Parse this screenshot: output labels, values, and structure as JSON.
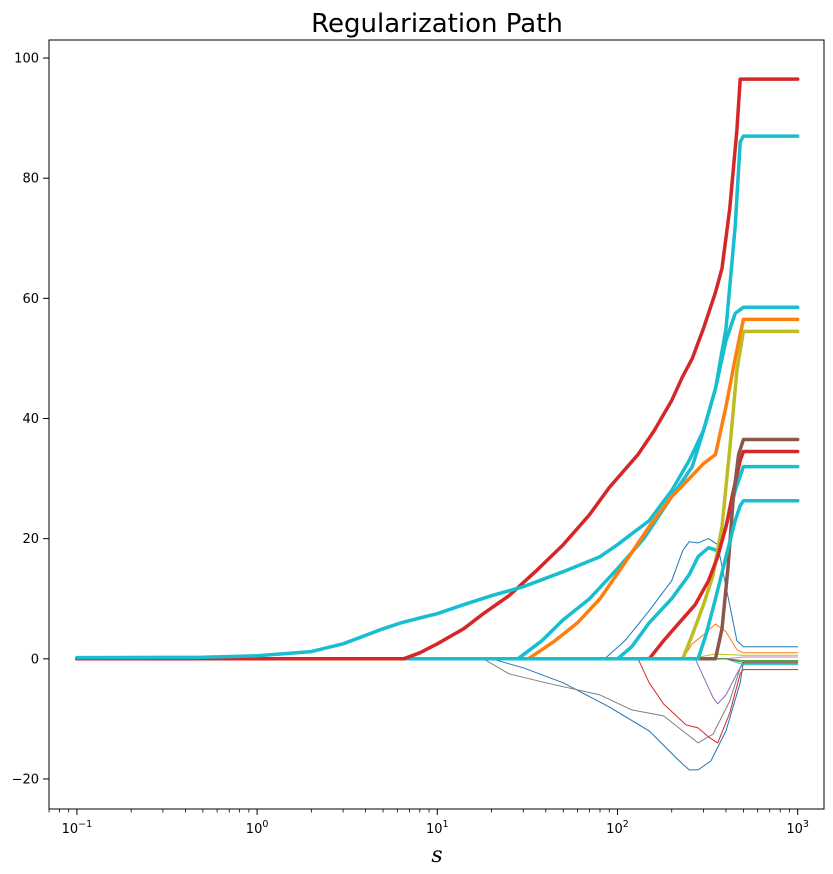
{
  "chart_data": {
    "type": "line",
    "title": "Regularization Path",
    "xlabel": "s",
    "ylabel": "",
    "xscale": "log",
    "xlim": [
      0.07,
      1400
    ],
    "ylim": [
      -25,
      103
    ],
    "grid": false,
    "legend": "none",
    "x_ticks": [
      {
        "value": 0.1,
        "mantissa": "10",
        "exp": "−1"
      },
      {
        "value": 1,
        "mantissa": "10",
        "exp": "0"
      },
      {
        "value": 10,
        "mantissa": "10",
        "exp": "1"
      },
      {
        "value": 100,
        "mantissa": "10",
        "exp": "2"
      },
      {
        "value": 1000,
        "mantissa": "10",
        "exp": "3"
      }
    ],
    "y_ticks": [
      {
        "value": -20,
        "label": "−20"
      },
      {
        "value": 0,
        "label": "0"
      },
      {
        "value": 20,
        "label": "20"
      },
      {
        "value": 40,
        "label": "40"
      },
      {
        "value": 60,
        "label": "60"
      },
      {
        "value": 80,
        "label": "80"
      },
      {
        "value": 100,
        "label": "100"
      }
    ],
    "series": [
      {
        "color": "#1f77b4",
        "width": 1,
        "points": [
          [
            0.1,
            0
          ],
          [
            20,
            0
          ],
          [
            30,
            -1.5
          ],
          [
            50,
            -4
          ],
          [
            90,
            -8
          ],
          [
            150,
            -12
          ],
          [
            220,
            -17
          ],
          [
            250,
            -18.5
          ],
          [
            280,
            -18.5
          ],
          [
            330,
            -17
          ],
          [
            400,
            -12
          ],
          [
            480,
            -4
          ],
          [
            500,
            -0.5
          ],
          [
            1000,
            -0.5
          ]
        ]
      },
      {
        "color": "#7f7f7f",
        "width": 1,
        "points": [
          [
            0.1,
            0
          ],
          [
            18,
            0
          ],
          [
            25,
            -2.5
          ],
          [
            40,
            -4
          ],
          [
            80,
            -6
          ],
          [
            120,
            -8.5
          ],
          [
            180,
            -9.5
          ],
          [
            230,
            -12
          ],
          [
            280,
            -14
          ],
          [
            340,
            -12.5
          ],
          [
            420,
            -7
          ],
          [
            480,
            -1.5
          ],
          [
            500,
            -0.8
          ],
          [
            1000,
            -0.8
          ]
        ]
      },
      {
        "color": "#d62728",
        "width": 1,
        "points": [
          [
            0.1,
            0
          ],
          [
            130,
            0
          ],
          [
            150,
            -4
          ],
          [
            180,
            -7.5
          ],
          [
            240,
            -11
          ],
          [
            280,
            -11.5
          ],
          [
            320,
            -13
          ],
          [
            360,
            -14
          ],
          [
            420,
            -9
          ],
          [
            480,
            -2.5
          ],
          [
            500,
            -1.8
          ],
          [
            1000,
            -1.8
          ]
        ]
      },
      {
        "color": "#9467bd",
        "width": 1,
        "points": [
          [
            0.1,
            0
          ],
          [
            270,
            0
          ],
          [
            300,
            -3
          ],
          [
            340,
            -6.5
          ],
          [
            360,
            -7.5
          ],
          [
            400,
            -6
          ],
          [
            450,
            -3
          ],
          [
            500,
            -0.5
          ],
          [
            1000,
            -0.5
          ]
        ]
      },
      {
        "color": "#1f77b4",
        "width": 1,
        "points": [
          [
            0.1,
            0
          ],
          [
            85,
            0
          ],
          [
            110,
            3
          ],
          [
            150,
            8
          ],
          [
            200,
            13
          ],
          [
            230,
            18
          ],
          [
            250,
            19.5
          ],
          [
            280,
            19.3
          ],
          [
            320,
            20
          ],
          [
            360,
            19
          ],
          [
            400,
            12
          ],
          [
            460,
            3
          ],
          [
            500,
            2
          ],
          [
            1000,
            2
          ]
        ]
      },
      {
        "color": "#ff7f0e",
        "width": 1,
        "points": [
          [
            0.1,
            0
          ],
          [
            230,
            0
          ],
          [
            260,
            2.5
          ],
          [
            300,
            4
          ],
          [
            350,
            5.8
          ],
          [
            400,
            4.5
          ],
          [
            460,
            1.5
          ],
          [
            500,
            1
          ],
          [
            1000,
            1
          ]
        ]
      },
      {
        "color": "#bcbd22",
        "width": 1,
        "points": [
          [
            0.1,
            0
          ],
          [
            250,
            0
          ],
          [
            350,
            0.8
          ],
          [
            500,
            0.6
          ],
          [
            1000,
            0.6
          ]
        ]
      },
      {
        "color": "#17becf",
        "width": 1,
        "points": [
          [
            0.1,
            0
          ],
          [
            400,
            0
          ],
          [
            500,
            -1
          ],
          [
            1000,
            -1
          ]
        ]
      },
      {
        "color": "#8c564b",
        "width": 1,
        "points": [
          [
            0.1,
            0
          ],
          [
            400,
            0
          ],
          [
            500,
            -0.6
          ],
          [
            1000,
            -0.6
          ]
        ]
      },
      {
        "color": "#e377c2",
        "width": 1,
        "points": [
          [
            0.1,
            0
          ],
          [
            400,
            0
          ],
          [
            500,
            0.3
          ],
          [
            1000,
            0.3
          ]
        ]
      },
      {
        "color": "#2ca02c",
        "width": 1,
        "points": [
          [
            0.1,
            0
          ],
          [
            400,
            0
          ],
          [
            500,
            -0.3
          ],
          [
            1000,
            -0.3
          ]
        ]
      },
      {
        "color": "#17becf",
        "width": 3.5,
        "points": [
          [
            0.1,
            0
          ],
          [
            28,
            0
          ],
          [
            38,
            3
          ],
          [
            50,
            6.5
          ],
          [
            70,
            10
          ],
          [
            100,
            15
          ],
          [
            140,
            20
          ],
          [
            200,
            27
          ],
          [
            260,
            32
          ],
          [
            300,
            38
          ],
          [
            350,
            45
          ],
          [
            400,
            53
          ],
          [
            450,
            57.5
          ],
          [
            500,
            58.5
          ],
          [
            1000,
            58.5
          ]
        ]
      },
      {
        "color": "#ff7f0e",
        "width": 3.5,
        "points": [
          [
            0.1,
            0
          ],
          [
            32,
            0
          ],
          [
            45,
            3
          ],
          [
            60,
            6
          ],
          [
            80,
            10
          ],
          [
            110,
            16
          ],
          [
            150,
            22
          ],
          [
            200,
            27
          ],
          [
            250,
            30
          ],
          [
            300,
            32.5
          ],
          [
            350,
            34
          ],
          [
            400,
            42
          ],
          [
            450,
            50
          ],
          [
            500,
            56.5
          ],
          [
            1000,
            56.5
          ]
        ]
      },
      {
        "color": "#17becf",
        "width": 3.5,
        "points": [
          [
            0.1,
            0
          ],
          [
            100,
            0
          ],
          [
            120,
            2
          ],
          [
            150,
            6
          ],
          [
            200,
            10
          ],
          [
            250,
            14
          ],
          [
            280,
            17
          ],
          [
            320,
            18.5
          ],
          [
            360,
            18
          ],
          [
            400,
            22
          ],
          [
            450,
            28
          ],
          [
            500,
            32
          ],
          [
            1000,
            32
          ]
        ]
      },
      {
        "color": "#bcbd22",
        "width": 3.5,
        "points": [
          [
            0.1,
            0
          ],
          [
            230,
            0
          ],
          [
            260,
            4
          ],
          [
            300,
            9
          ],
          [
            340,
            14
          ],
          [
            380,
            22
          ],
          [
            420,
            35
          ],
          [
            460,
            48
          ],
          [
            500,
            54.5
          ],
          [
            1000,
            54.5
          ]
        ]
      },
      {
        "color": "#d62728",
        "width": 3.5,
        "points": [
          [
            0.1,
            0
          ],
          [
            150,
            0
          ],
          [
            180,
            3
          ],
          [
            220,
            6
          ],
          [
            270,
            9
          ],
          [
            320,
            13
          ],
          [
            360,
            17
          ],
          [
            400,
            22
          ],
          [
            440,
            28
          ],
          [
            480,
            33
          ],
          [
            500,
            34.5
          ],
          [
            1000,
            34.5
          ]
        ]
      },
      {
        "color": "#8c564b",
        "width": 3.5,
        "points": [
          [
            0.1,
            0
          ],
          [
            350,
            0
          ],
          [
            380,
            5
          ],
          [
            410,
            15
          ],
          [
            440,
            27
          ],
          [
            470,
            34
          ],
          [
            500,
            36.5
          ],
          [
            1000,
            36.5
          ]
        ]
      },
      {
        "color": "#17becf",
        "width": 3.5,
        "points": [
          [
            0.1,
            0
          ],
          [
            280,
            0
          ],
          [
            310,
            4
          ],
          [
            350,
            10
          ],
          [
            400,
            17
          ],
          [
            450,
            23
          ],
          [
            480,
            25.5
          ],
          [
            500,
            26.3
          ],
          [
            1000,
            26.3
          ]
        ]
      },
      {
        "color": "#d62728",
        "width": 3.5,
        "points": [
          [
            0.1,
            0
          ],
          [
            6.5,
            0
          ],
          [
            8,
            1
          ],
          [
            10,
            2.5
          ],
          [
            14,
            5
          ],
          [
            18,
            7.5
          ],
          [
            25,
            10.5
          ],
          [
            35,
            14.5
          ],
          [
            50,
            19
          ],
          [
            70,
            24
          ],
          [
            90,
            28.5
          ],
          [
            130,
            34
          ],
          [
            160,
            38
          ],
          [
            200,
            43
          ],
          [
            230,
            47
          ],
          [
            260,
            50
          ],
          [
            300,
            55
          ],
          [
            350,
            61
          ],
          [
            380,
            65
          ],
          [
            420,
            75
          ],
          [
            460,
            88
          ],
          [
            480,
            96.5
          ],
          [
            500,
            96.5
          ],
          [
            1000,
            96.5
          ]
        ]
      },
      {
        "color": "#17becf",
        "width": 3.5,
        "points": [
          [
            0.1,
            0.2
          ],
          [
            0.5,
            0.25
          ],
          [
            1,
            0.5
          ],
          [
            2,
            1.2
          ],
          [
            3,
            2.5
          ],
          [
            5,
            5
          ],
          [
            6.3,
            6
          ],
          [
            8,
            6.8
          ],
          [
            10,
            7.5
          ],
          [
            14,
            9
          ],
          [
            20,
            10.5
          ],
          [
            30,
            12
          ],
          [
            50,
            14.5
          ],
          [
            80,
            17
          ],
          [
            100,
            19
          ],
          [
            150,
            23
          ],
          [
            200,
            28
          ],
          [
            250,
            33
          ],
          [
            300,
            38
          ],
          [
            350,
            45
          ],
          [
            400,
            55
          ],
          [
            450,
            72
          ],
          [
            480,
            86
          ],
          [
            500,
            87
          ],
          [
            1000,
            87
          ]
        ]
      }
    ]
  }
}
